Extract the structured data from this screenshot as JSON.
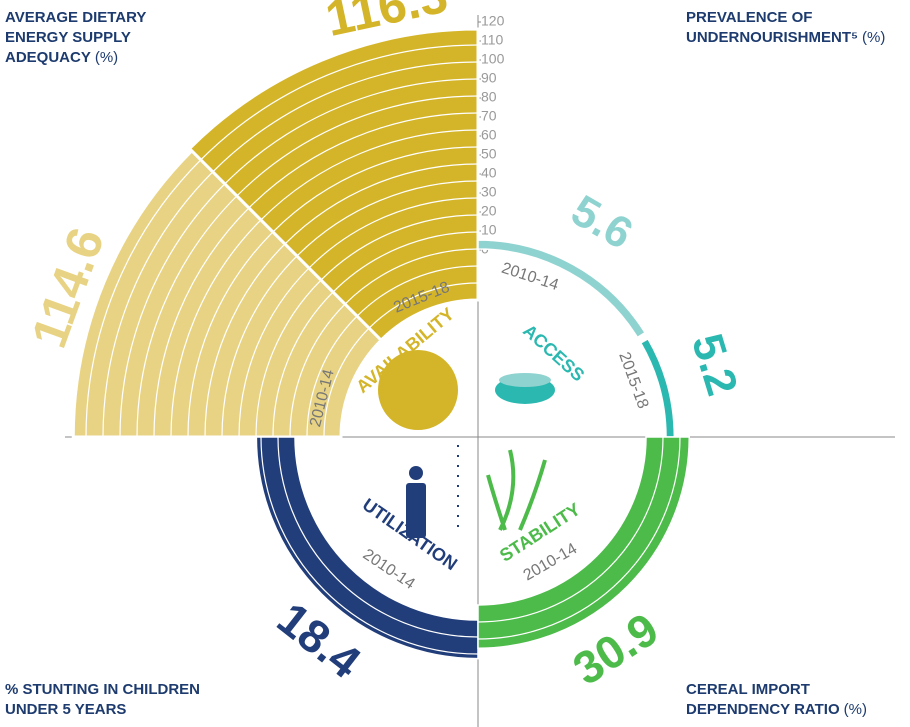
{
  "chart_data": {
    "type": "radial_bar",
    "ylim": [
      0,
      120
    ],
    "yticks": [
      0,
      10,
      20,
      30,
      40,
      50,
      60,
      70,
      80,
      90,
      100,
      110,
      120
    ],
    "quadrants": [
      {
        "title": [
          "AVERAGE DIETARY",
          "ENERGY SUPPLY",
          "ADEQUACY"
        ],
        "unit": "(%)",
        "pillar": "AVAILABILITY",
        "pillar_color": "#d4b52a",
        "categories": [
          "2010-14",
          "2015-18"
        ],
        "values": [
          114.6,
          116.3
        ],
        "colors": [
          "#e8d384",
          "#d4b52a"
        ]
      },
      {
        "title": [
          "PREVALENCE OF",
          "UNDERNOURISHMENT⁵"
        ],
        "unit": "(%)",
        "pillar": "ACCESS",
        "pillar_color": "#2bb8b0",
        "categories": [
          "2010-14",
          "2015-18"
        ],
        "values": [
          5.6,
          5.2
        ],
        "colors": [
          "#8fd3d0",
          "#2bb8b0"
        ]
      },
      {
        "title": [
          "% STUNTING IN CHILDREN",
          "UNDER 5 YEARS"
        ],
        "pillar": "UTILIZATION",
        "pillar_color": "#223e7a",
        "categories": [
          "2010-14"
        ],
        "values": [
          18.4
        ],
        "colors": [
          "#223e7a"
        ]
      },
      {
        "title": [
          "CEREAL IMPORT",
          "DEPENDENCY RATIO"
        ],
        "unit": "(%)",
        "pillar": "STABILITY",
        "pillar_color": "#4dbb4a",
        "categories": [
          "2010-14"
        ],
        "values": [
          30.9
        ],
        "colors": [
          "#4dbb4a"
        ]
      }
    ]
  }
}
